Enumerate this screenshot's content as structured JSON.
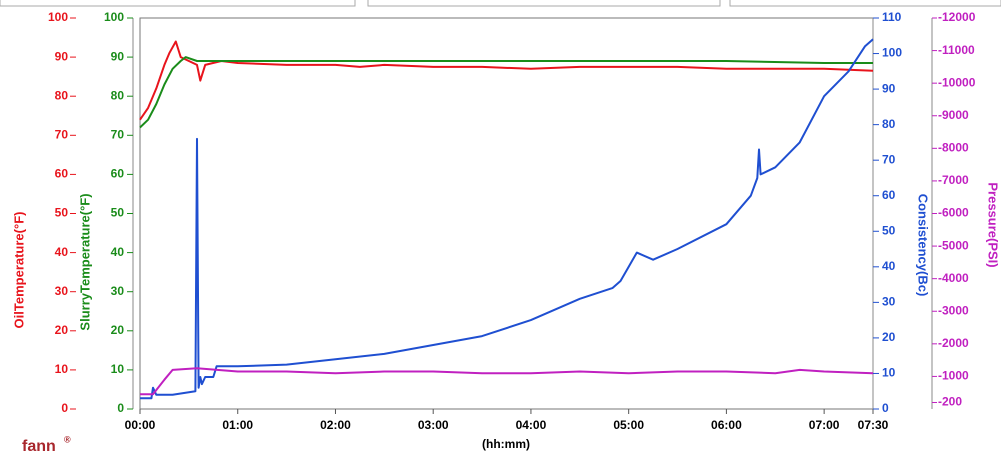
{
  "chart_data": {
    "type": "line",
    "brand": "fann",
    "brand_mark": "®",
    "xlabel": "(hh:mm)",
    "xlim": [
      0,
      450
    ],
    "xticks": [
      {
        "value": 0,
        "label": "00:00"
      },
      {
        "value": 60,
        "label": "01:00"
      },
      {
        "value": 120,
        "label": "02:00"
      },
      {
        "value": 180,
        "label": "03:00"
      },
      {
        "value": 240,
        "label": "04:00"
      },
      {
        "value": 300,
        "label": "05:00"
      },
      {
        "value": 360,
        "label": "06:00"
      },
      {
        "value": 420,
        "label": "07:00"
      },
      {
        "value": 450,
        "label": "07:30"
      }
    ],
    "axes": [
      {
        "title": "OilTemperature(°F)",
        "color": "#e8141c",
        "lim": [
          0,
          100
        ],
        "ticks": [
          0,
          10,
          20,
          30,
          40,
          50,
          60,
          70,
          80,
          90,
          100
        ]
      },
      {
        "title": "SlurryTemperature(°F)",
        "color": "#1a8c1a",
        "lim": [
          0,
          100
        ],
        "ticks": [
          0,
          10,
          20,
          30,
          40,
          50,
          60,
          70,
          80,
          90,
          100
        ]
      },
      {
        "title": "Consistency(Bc)",
        "color": "#1f4fd1",
        "lim": [
          0,
          110
        ],
        "ticks": [
          0,
          10,
          20,
          30,
          40,
          50,
          60,
          70,
          80,
          90,
          100,
          110
        ]
      },
      {
        "title": "Pressure(PSI)",
        "color": "#c020c0",
        "lim": [
          0,
          -12000
        ],
        "ticks": [
          -200,
          -1000,
          -2000,
          -3000,
          -4000,
          -5000,
          -6000,
          -7000,
          -8000,
          -9000,
          -10000,
          -11000,
          -12000
        ]
      }
    ],
    "series": [
      {
        "axis": 0,
        "color": "#e8141c",
        "x": [
          0,
          5,
          10,
          15,
          18,
          22,
          25,
          30,
          35,
          37,
          40,
          50,
          60,
          90,
          120,
          135,
          150,
          180,
          210,
          240,
          270,
          300,
          330,
          360,
          390,
          420,
          450
        ],
        "values": [
          74,
          77,
          82,
          88,
          91,
          94,
          90,
          89,
          88,
          84,
          88,
          89,
          88.5,
          88,
          88,
          87.5,
          88,
          87.5,
          87.5,
          87,
          87.5,
          87.5,
          87.5,
          87,
          87,
          87,
          86.5
        ]
      },
      {
        "axis": 1,
        "color": "#1a8c1a",
        "x": [
          0,
          5,
          10,
          15,
          20,
          25,
          28,
          35,
          60,
          120,
          180,
          240,
          300,
          360,
          420,
          450
        ],
        "values": [
          72,
          74,
          78,
          83,
          87,
          89,
          90,
          89,
          89,
          89,
          89,
          89,
          89,
          89,
          88.5,
          88.5
        ]
      },
      {
        "axis": 2,
        "color": "#1f4fd1",
        "x": [
          0,
          7,
          8,
          10,
          20,
          34,
          35,
          36,
          37,
          38,
          40,
          45,
          47,
          60,
          90,
          120,
          150,
          180,
          210,
          240,
          270,
          290,
          295,
          300,
          305,
          315,
          330,
          360,
          375,
          379,
          380,
          381,
          390,
          405,
          420,
          435,
          445,
          450
        ],
        "values": [
          3,
          3,
          6,
          4,
          4,
          5,
          76,
          6,
          9,
          7,
          9,
          9,
          12,
          12,
          12.5,
          14,
          15.5,
          18,
          20.5,
          25,
          31,
          34,
          36,
          40,
          44,
          42,
          45,
          52,
          60,
          65,
          73,
          66,
          68,
          75,
          88,
          95,
          102,
          104
        ]
      },
      {
        "axis": 3,
        "color": "#c020c0",
        "x": [
          0,
          8,
          15,
          20,
          35,
          60,
          90,
          120,
          150,
          180,
          210,
          240,
          270,
          300,
          330,
          360,
          390,
          405,
          420,
          450
        ],
        "values": [
          -450,
          -450,
          -900,
          -1200,
          -1250,
          -1150,
          -1150,
          -1100,
          -1150,
          -1150,
          -1100,
          -1100,
          -1150,
          -1100,
          -1150,
          -1150,
          -1100,
          -1200,
          -1150,
          -1100
        ]
      }
    ]
  }
}
